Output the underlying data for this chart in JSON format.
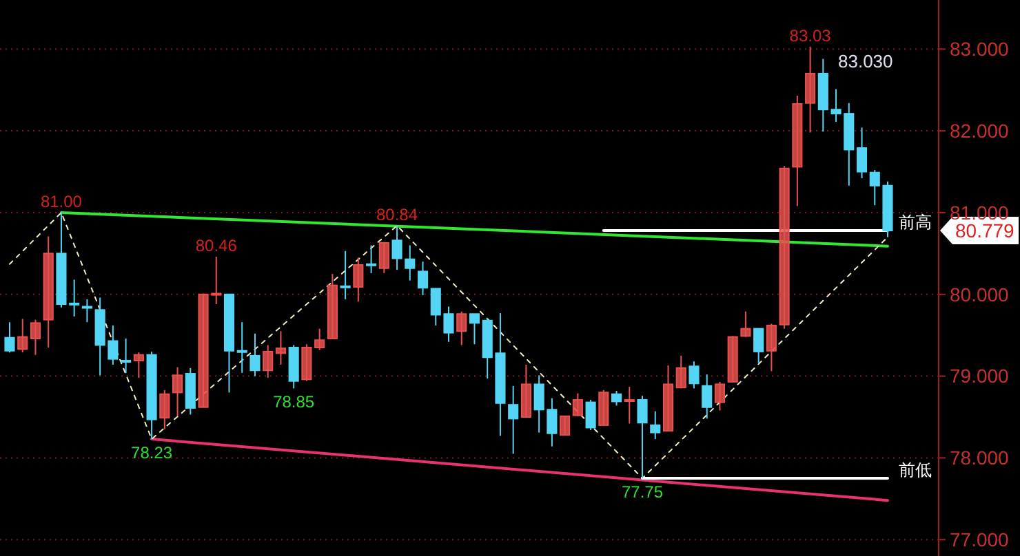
{
  "chart_data": {
    "type": "candlestick",
    "tick_labels": "y",
    "grid": "y",
    "categories": [
      null,
      null,
      null,
      null,
      null,
      null,
      null,
      null,
      null,
      null,
      null,
      null,
      null,
      null,
      null,
      null,
      null,
      null,
      null,
      null,
      null,
      null,
      null,
      null,
      null,
      null,
      null,
      null,
      null,
      null,
      null,
      null,
      null,
      null,
      null,
      null,
      null,
      null,
      null,
      null,
      null,
      null,
      null,
      null,
      null,
      null,
      null,
      null,
      null,
      null,
      null,
      null,
      null,
      null,
      null,
      null,
      null,
      null,
      null,
      null,
      null,
      null,
      null,
      null,
      null,
      null,
      null,
      null,
      null
    ],
    "ylim": [
      76.8,
      83.6
    ],
    "yticks": [
      {
        "value": 77,
        "label": "77.000"
      },
      {
        "value": 78,
        "label": "78.000"
      },
      {
        "value": 79,
        "label": "79.000"
      },
      {
        "value": 80,
        "label": "80.000"
      },
      {
        "value": 81,
        "label": "81.000"
      },
      {
        "value": 82,
        "label": "82.000"
      },
      {
        "value": 83,
        "label": "83.000"
      }
    ],
    "ohlc": [
      [
        79.47,
        79.66,
        79.29,
        79.31
      ],
      [
        79.33,
        79.7,
        79.29,
        79.48
      ],
      [
        79.46,
        79.69,
        79.26,
        79.65
      ],
      [
        79.69,
        80.71,
        79.35,
        80.5
      ],
      [
        80.5,
        81.0,
        79.84,
        79.88
      ],
      [
        79.89,
        80.18,
        79.73,
        79.88
      ],
      [
        79.85,
        79.94,
        79.66,
        79.84
      ],
      [
        79.81,
        79.96,
        79.01,
        79.38
      ],
      [
        79.43,
        79.62,
        79.14,
        79.21
      ],
      [
        79.19,
        79.46,
        79.04,
        79.18
      ],
      [
        79.19,
        79.29,
        78.98,
        79.26
      ],
      [
        79.26,
        79.3,
        78.23,
        78.47
      ],
      [
        78.49,
        78.83,
        78.35,
        78.78
      ],
      [
        78.8,
        79.11,
        78.51,
        79.01
      ],
      [
        79.03,
        79.1,
        78.53,
        78.61
      ],
      [
        78.62,
        80.01,
        78.62,
        80.0
      ],
      [
        80.0,
        80.46,
        79.88,
        80.01
      ],
      [
        80.0,
        80.0,
        78.8,
        79.31
      ],
      [
        79.31,
        79.66,
        79.04,
        79.3
      ],
      [
        79.25,
        79.52,
        79.0,
        79.07
      ],
      [
        79.07,
        79.38,
        78.98,
        79.3
      ],
      [
        79.28,
        79.55,
        79.14,
        79.34
      ],
      [
        79.35,
        79.38,
        78.85,
        78.94
      ],
      [
        78.96,
        79.39,
        78.94,
        79.35
      ],
      [
        79.35,
        79.58,
        79.32,
        79.44
      ],
      [
        79.46,
        80.25,
        79.46,
        80.11
      ],
      [
        80.1,
        80.53,
        79.94,
        80.09
      ],
      [
        80.09,
        80.45,
        79.91,
        80.36
      ],
      [
        80.37,
        80.6,
        80.26,
        80.36
      ],
      [
        80.32,
        80.64,
        80.26,
        80.63
      ],
      [
        80.66,
        80.84,
        80.3,
        80.44
      ],
      [
        80.43,
        80.6,
        80.17,
        80.32
      ],
      [
        80.28,
        80.4,
        79.99,
        80.08
      ],
      [
        80.07,
        80.07,
        79.62,
        79.75
      ],
      [
        79.76,
        79.85,
        79.42,
        79.53
      ],
      [
        79.55,
        79.79,
        79.38,
        79.76
      ],
      [
        79.76,
        79.76,
        79.39,
        79.65
      ],
      [
        79.68,
        79.71,
        78.97,
        79.23
      ],
      [
        79.28,
        79.77,
        78.27,
        78.67
      ],
      [
        78.65,
        78.88,
        78.05,
        78.48
      ],
      [
        78.5,
        79.14,
        78.5,
        78.9
      ],
      [
        78.9,
        79.01,
        78.31,
        78.59
      ],
      [
        78.59,
        78.73,
        78.14,
        78.3
      ],
      [
        78.28,
        78.51,
        78.28,
        78.51
      ],
      [
        78.52,
        78.79,
        78.51,
        78.71
      ],
      [
        78.68,
        78.71,
        78.34,
        78.37
      ],
      [
        78.4,
        78.83,
        78.39,
        78.8
      ],
      [
        78.78,
        78.82,
        78.64,
        78.69
      ],
      [
        78.7,
        78.87,
        78.42,
        78.71
      ],
      [
        78.71,
        78.76,
        77.75,
        78.43
      ],
      [
        78.4,
        78.57,
        78.23,
        78.31
      ],
      [
        78.33,
        79.13,
        78.33,
        78.9
      ],
      [
        78.86,
        79.25,
        78.85,
        79.1
      ],
      [
        79.12,
        79.18,
        78.85,
        78.91
      ],
      [
        78.88,
        79.02,
        78.48,
        78.62
      ],
      [
        78.68,
        78.93,
        78.58,
        78.9
      ],
      [
        78.93,
        79.49,
        78.93,
        79.48
      ],
      [
        79.49,
        79.79,
        79.48,
        79.58
      ],
      [
        79.58,
        79.58,
        79.16,
        79.3
      ],
      [
        79.31,
        79.64,
        79.06,
        79.62
      ],
      [
        79.63,
        81.57,
        79.58,
        81.54
      ],
      [
        81.56,
        82.43,
        81.08,
        82.33
      ],
      [
        82.34,
        83.03,
        81.98,
        82.7
      ],
      [
        82.7,
        82.88,
        81.99,
        82.26
      ],
      [
        82.26,
        82.51,
        82.11,
        82.21
      ],
      [
        82.21,
        82.34,
        81.33,
        81.77
      ],
      [
        81.79,
        82.04,
        81.42,
        81.5
      ],
      [
        81.49,
        81.52,
        81.09,
        81.33
      ],
      [
        81.33,
        81.38,
        80.7,
        80.78
      ]
    ],
    "colors": [
      "#54d5f5",
      "#e8514f",
      "#e8514f",
      "#e8514f",
      "#54d5f5",
      "#54d5f5",
      "#54d5f5",
      "#54d5f5",
      "#54d5f5",
      "#54d5f5",
      "#e8514f",
      "#54d5f5",
      "#e8514f",
      "#e8514f",
      "#54d5f5",
      "#e8514f",
      "#e8514f",
      "#54d5f5",
      "#54d5f5",
      "#54d5f5",
      "#e8514f",
      "#e8514f",
      "#54d5f5",
      "#e8514f",
      "#e8514f",
      "#e8514f",
      "#54d5f5",
      "#e8514f",
      "#54d5f5",
      "#e8514f",
      "#54d5f5",
      "#54d5f5",
      "#54d5f5",
      "#54d5f5",
      "#54d5f5",
      "#e8514f",
      "#54d5f5",
      "#54d5f5",
      "#54d5f5",
      "#54d5f5",
      "#e8514f",
      "#54d5f5",
      "#54d5f5",
      "#e8514f",
      "#e8514f",
      "#54d5f5",
      "#e8514f",
      "#54d5f5",
      "#e8514f",
      "#54d5f5",
      "#54d5f5",
      "#e8514f",
      "#e8514f",
      "#54d5f5",
      "#54d5f5",
      "#e8514f",
      "#e8514f",
      "#e8514f",
      "#54d5f5",
      "#e8514f",
      "#e8514f",
      "#e8514f",
      "#e8514f",
      "#54d5f5",
      "#54d5f5",
      "#54d5f5",
      "#54d5f5",
      "#54d5f5",
      "#54d5f5"
    ],
    "series": [
      {
        "type": "line",
        "color": "#33e633",
        "values": [
          null,
          null,
          null,
          null,
          81.0,
          null,
          null,
          null,
          null,
          null,
          null,
          null,
          null,
          null,
          null,
          null,
          null,
          null,
          null,
          null,
          null,
          null,
          null,
          null,
          null,
          null,
          null,
          null,
          null,
          null,
          null,
          null,
          null,
          null,
          null,
          null,
          null,
          null,
          null,
          null,
          null,
          null,
          null,
          null,
          null,
          null,
          null,
          null,
          null,
          null,
          null,
          null,
          null,
          null,
          null,
          null,
          null,
          null,
          null,
          null,
          null,
          null,
          null,
          null,
          null,
          null,
          null,
          null,
          80.59
        ]
      },
      {
        "type": "line",
        "color": "#e8336e",
        "values": [
          null,
          null,
          null,
          null,
          null,
          null,
          null,
          null,
          null,
          null,
          null,
          78.23,
          null,
          null,
          null,
          null,
          null,
          null,
          null,
          null,
          null,
          null,
          null,
          null,
          null,
          null,
          null,
          null,
          null,
          null,
          null,
          null,
          null,
          null,
          null,
          null,
          null,
          null,
          null,
          null,
          null,
          null,
          null,
          null,
          null,
          null,
          null,
          null,
          null,
          null,
          null,
          null,
          null,
          null,
          null,
          null,
          null,
          null,
          null,
          null,
          null,
          null,
          null,
          null,
          null,
          null,
          null,
          null,
          77.48
        ]
      },
      {
        "type": "line",
        "color": "#f0f0c0",
        "line_style": "dashed",
        "values": [
          80.37,
          null,
          null,
          null,
          81.0,
          null,
          null,
          null,
          null,
          null,
          null,
          78.23,
          null,
          null,
          null,
          null,
          null,
          null,
          null,
          null,
          null,
          null,
          null,
          null,
          null,
          null,
          null,
          null,
          null,
          null,
          80.84,
          null,
          null,
          null,
          null,
          null,
          null,
          null,
          null,
          null,
          null,
          null,
          null,
          null,
          null,
          null,
          null,
          null,
          null,
          77.75,
          null,
          null,
          null,
          null,
          null,
          null,
          null,
          null,
          null,
          null,
          null,
          null,
          null,
          null,
          null,
          null,
          null,
          null,
          80.7
        ]
      },
      {
        "type": "line",
        "name": "前高",
        "color": "#ffffff",
        "values": [
          null,
          null,
          null,
          null,
          null,
          null,
          null,
          null,
          null,
          null,
          null,
          null,
          null,
          null,
          null,
          null,
          null,
          null,
          null,
          null,
          null,
          null,
          null,
          null,
          null,
          null,
          null,
          null,
          null,
          null,
          null,
          null,
          null,
          null,
          null,
          null,
          null,
          null,
          null,
          null,
          null,
          null,
          null,
          null,
          null,
          null,
          80.78,
          null,
          null,
          null,
          null,
          null,
          null,
          null,
          null,
          null,
          null,
          null,
          null,
          null,
          null,
          null,
          null,
          null,
          null,
          null,
          null,
          null,
          80.78
        ]
      },
      {
        "type": "line",
        "name": "前低",
        "color": "#ffffff",
        "values": [
          null,
          null,
          null,
          null,
          null,
          null,
          null,
          null,
          null,
          null,
          null,
          null,
          null,
          null,
          null,
          null,
          null,
          null,
          null,
          null,
          null,
          null,
          null,
          null,
          null,
          null,
          null,
          null,
          null,
          null,
          null,
          null,
          null,
          null,
          null,
          null,
          null,
          null,
          null,
          null,
          null,
          null,
          null,
          null,
          null,
          null,
          null,
          null,
          null,
          77.75,
          null,
          null,
          null,
          null,
          null,
          null,
          null,
          null,
          null,
          null,
          null,
          null,
          null,
          null,
          null,
          null,
          null,
          null,
          77.75
        ]
      }
    ],
    "annotations": [
      {
        "text": "81.00",
        "y": 81.0
      },
      {
        "text": "78.23",
        "y": 78.23
      },
      {
        "text": "80.46",
        "y": 80.46
      },
      {
        "text": "78.85",
        "y": 78.85
      },
      {
        "text": "80.84",
        "y": 80.84
      },
      {
        "text": "77.75",
        "y": 77.75
      },
      {
        "text": "83.03",
        "y": 83.03
      },
      "83.030",
      "80.779"
    ]
  }
}
